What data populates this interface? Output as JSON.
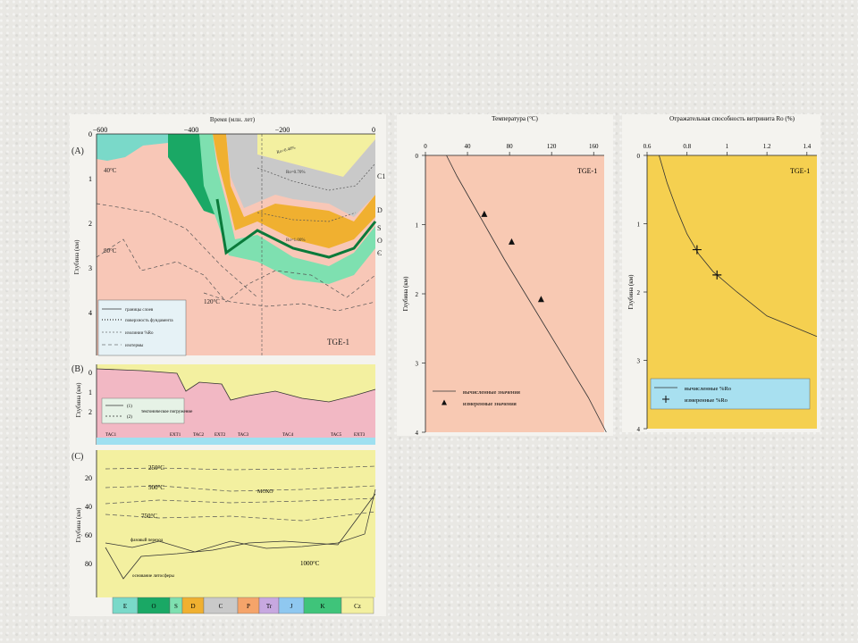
{
  "well": "TGE-1",
  "panelA": {
    "label": "(A)",
    "top_axis_title": "Время (млн. лет)",
    "top_ticks": [
      "−600",
      "−400",
      "−200",
      "0"
    ],
    "ylabel": "Глубина (км)",
    "y_ticks": [
      "0",
      "1",
      "2",
      "3",
      "4"
    ],
    "isotherm_labels": [
      "40°C",
      "80°C",
      "120°C"
    ],
    "ro_labels": [
      "Ro=0.40%",
      "Ro=0.70%",
      "Ro=1.00%"
    ],
    "right_labels": [
      "C1",
      "D",
      "S",
      "O",
      "Є"
    ],
    "legend": [
      "границы слоев",
      "поверхность фундамента",
      "изолинии %Ro",
      "изотермы"
    ],
    "well_label": "TGE-1"
  },
  "panelB": {
    "label": "(B)",
    "ylabel": "Глубина (км)",
    "y_ticks": [
      "0",
      "1",
      "2"
    ],
    "legend": [
      "(1)",
      "(2)",
      "тектоническое погружение"
    ],
    "phases": [
      "TAC1",
      "EXT1",
      "TAC2",
      "EXT2",
      "TAC3",
      "TAC4",
      "TAC5",
      "EXT3"
    ]
  },
  "panelC": {
    "label": "(C)",
    "ylabel": "Глубина (км)",
    "y_ticks": [
      "20",
      "40",
      "60",
      "80"
    ],
    "labels": [
      "250°C",
      "500°C",
      "750°C",
      "МОХО",
      "фазовый переход",
      "1000°C",
      "основание литосферы"
    ]
  },
  "periods": [
    {
      "name": "E",
      "color": "#7ad9c9"
    },
    {
      "name": "O",
      "color": "#1aa865"
    },
    {
      "name": "S",
      "color": "#7ee0b0"
    },
    {
      "name": "D",
      "color": "#f0b030"
    },
    {
      "name": "C",
      "color": "#c9c9c9"
    },
    {
      "name": "P",
      "color": "#f5a46a"
    },
    {
      "name": "Tr",
      "color": "#c7a8e0"
    },
    {
      "name": "J",
      "color": "#8fc8f0"
    },
    {
      "name": "K",
      "color": "#3fc47a"
    },
    {
      "name": "Cz",
      "color": "#f3f0a0"
    }
  ],
  "chart_data": [
    {
      "type": "scatter",
      "title": "Температура (°C)",
      "xlabel": "Температура (°C)",
      "ylabel": "Глубина (км)",
      "xlim": [
        0,
        170
      ],
      "ylim": [
        0,
        4
      ],
      "x_ticks": [
        "0",
        "40",
        "80",
        "120",
        "160"
      ],
      "y_ticks": [
        "0",
        "1",
        "2",
        "3",
        "4"
      ],
      "annotation": "TGE-1",
      "series": [
        {
          "name": "вычисленные значения",
          "kind": "line",
          "points": [
            [
              20,
              0
            ],
            [
              30,
              0.3
            ],
            [
              45,
              0.7
            ],
            [
              60,
              1.1
            ],
            [
              75,
              1.5
            ],
            [
              95,
              2.0
            ],
            [
              115,
              2.5
            ],
            [
              135,
              3.0
            ],
            [
              155,
              3.5
            ],
            [
              172,
              4.0
            ]
          ]
        },
        {
          "name": "измеренные значения",
          "kind": "marker",
          "points": [
            [
              56,
              0.85
            ],
            [
              82,
              1.25
            ],
            [
              110,
              2.08
            ]
          ]
        }
      ]
    },
    {
      "type": "scatter",
      "title": "Отражательная способность витринита Ro (%)",
      "xlabel": "Отражательная способность витринита Ro (%)",
      "ylabel": "Глубина (км)",
      "xlim": [
        0.6,
        1.45
      ],
      "ylim": [
        0,
        4
      ],
      "x_ticks": [
        "0.6",
        "0.8",
        "1",
        "1.2",
        "1.4"
      ],
      "y_ticks": [
        "0",
        "1",
        "2",
        "3",
        "4"
      ],
      "annotation": "TGE-1",
      "series": [
        {
          "name": "вычисленные %Ro",
          "kind": "line",
          "points": [
            [
              0.66,
              0
            ],
            [
              0.7,
              0.4
            ],
            [
              0.75,
              0.8
            ],
            [
              0.8,
              1.15
            ],
            [
              0.86,
              1.45
            ],
            [
              0.93,
              1.7
            ],
            [
              1.05,
              2.0
            ],
            [
              1.2,
              2.35
            ],
            [
              1.45,
              2.65
            ]
          ]
        },
        {
          "name": "измеренные %Ro",
          "kind": "marker",
          "points": [
            [
              0.85,
              1.38
            ],
            [
              0.95,
              1.75
            ]
          ]
        }
      ]
    }
  ]
}
